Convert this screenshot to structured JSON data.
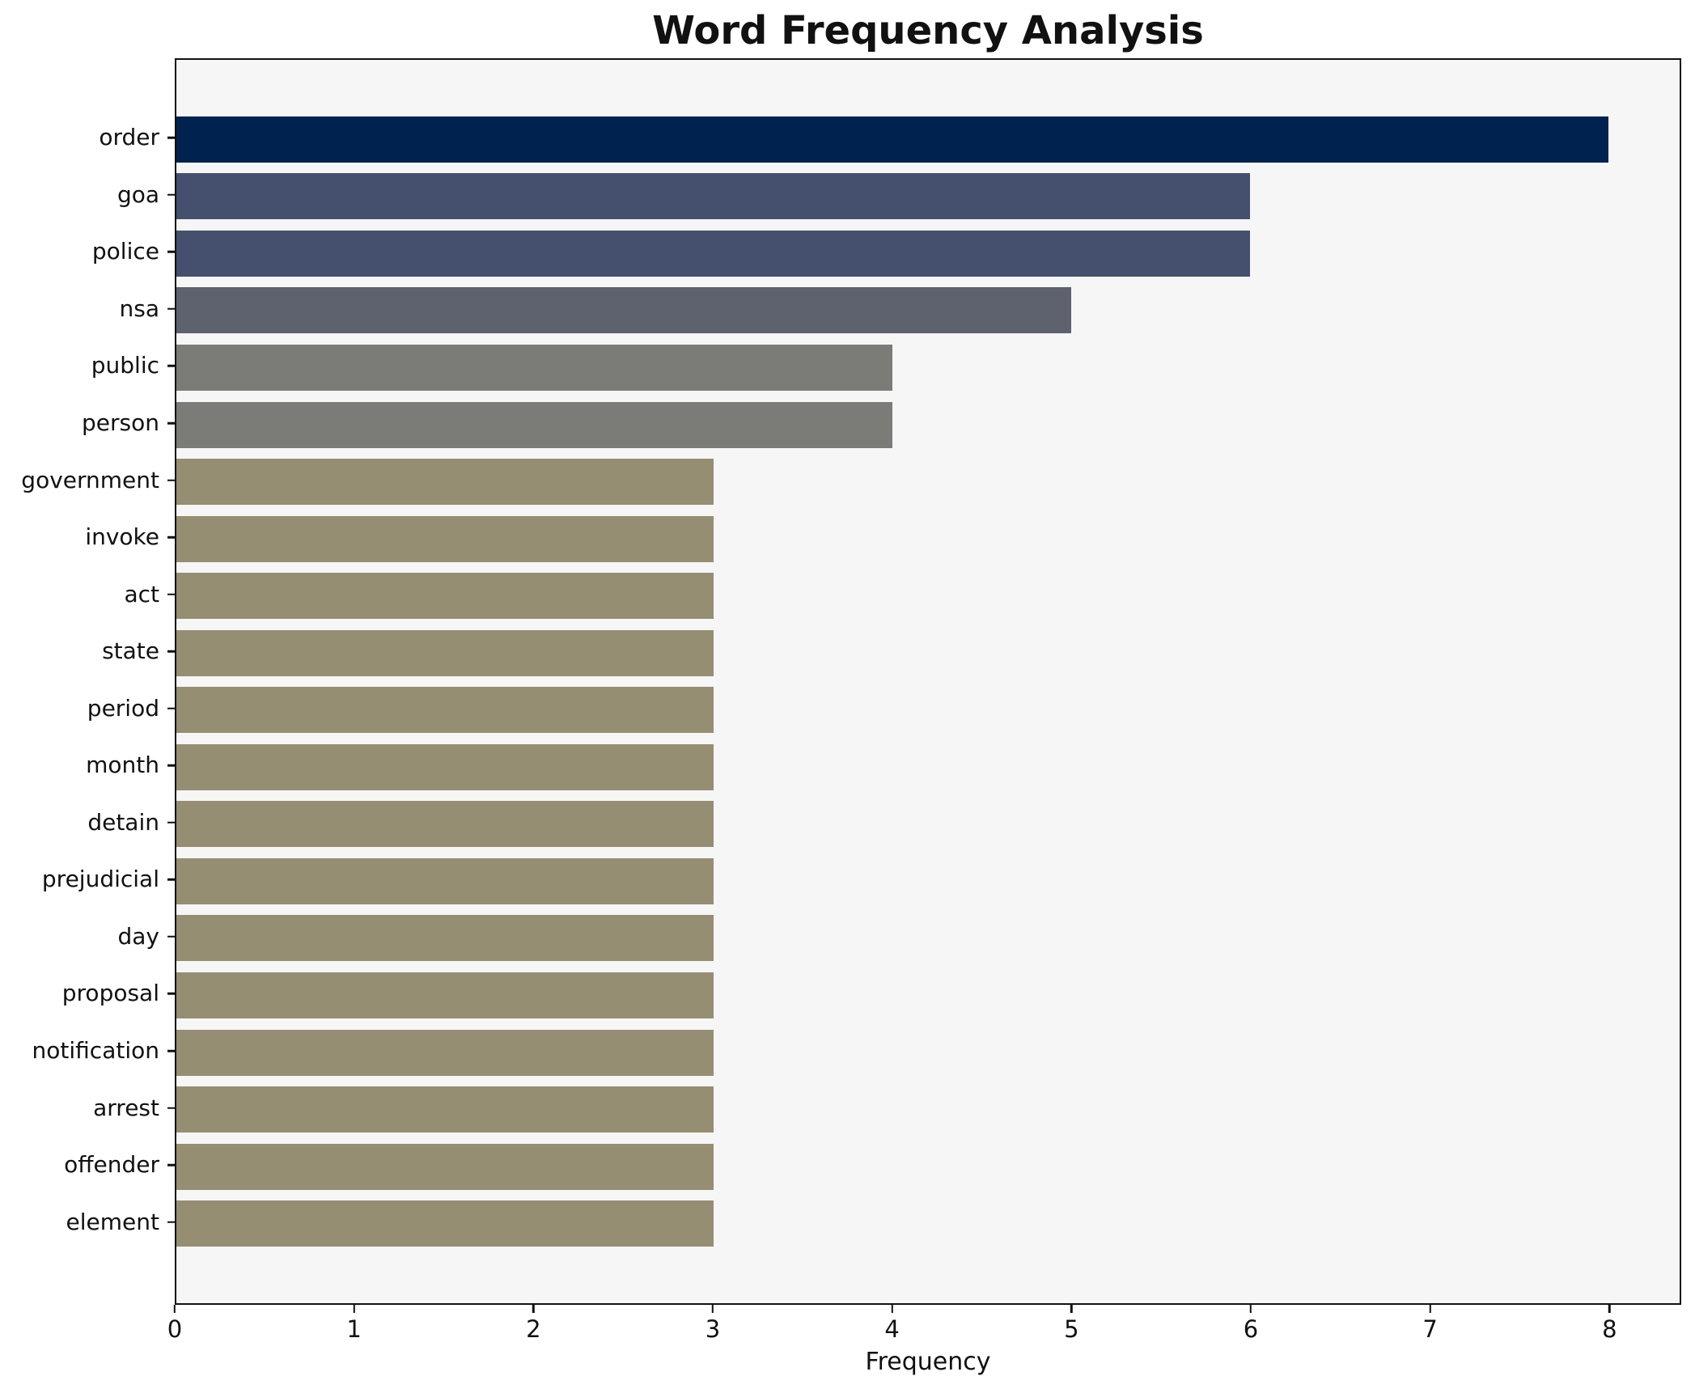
{
  "title": "Word Frequency Analysis",
  "colors": {
    "plot_bg": "#f6f6f7",
    "figure_bg": "#ffffff",
    "spine": "#111111",
    "text": "#111111"
  },
  "chart_data": {
    "type": "bar",
    "orientation": "horizontal",
    "title": "Word Frequency Analysis",
    "xlabel": "Frequency",
    "ylabel": "",
    "xlim": [
      0,
      8.4
    ],
    "xticks": [
      0,
      1,
      2,
      3,
      4,
      5,
      6,
      7,
      8
    ],
    "grid": false,
    "legend": null,
    "categories": [
      "order",
      "goa",
      "police",
      "nsa",
      "public",
      "person",
      "government",
      "invoke",
      "act",
      "state",
      "period",
      "month",
      "detain",
      "prejudicial",
      "day",
      "proposal",
      "notification",
      "arrest",
      "offender",
      "element"
    ],
    "values": [
      8,
      6,
      6,
      5,
      4,
      4,
      3,
      3,
      3,
      3,
      3,
      3,
      3,
      3,
      3,
      3,
      3,
      3,
      3,
      3
    ],
    "bar_colors": [
      "#00224e",
      "#45506e",
      "#45506e",
      "#5e616e",
      "#7b7b78",
      "#7b7b78",
      "#968e72",
      "#968e72",
      "#968e72",
      "#968e72",
      "#968e72",
      "#968e72",
      "#968e72",
      "#968e72",
      "#968e72",
      "#968e72",
      "#968e72",
      "#968e72",
      "#968e72",
      "#968e72"
    ]
  }
}
